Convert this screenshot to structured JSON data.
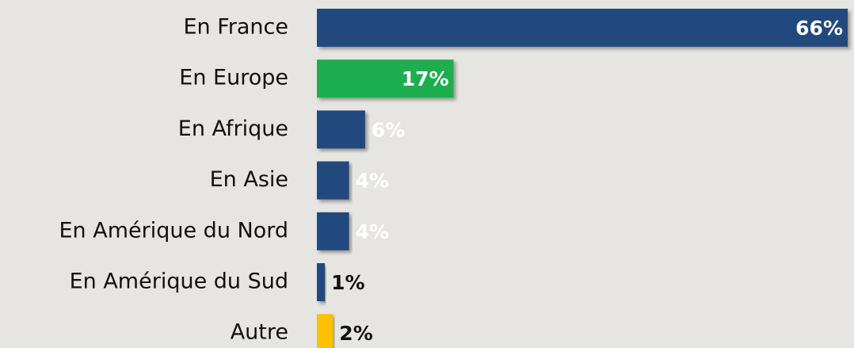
{
  "chart_data": {
    "type": "hbar",
    "categories": [
      "En France",
      "En Europe",
      "En Afrique",
      "En Asie",
      "En Amérique du Nord",
      "En Amérique du Sud",
      "Autre"
    ],
    "values": [
      66,
      17,
      6,
      4,
      4,
      1,
      2
    ],
    "value_labels": [
      "66%",
      "17%",
      "6%",
      "4%",
      "4%",
      "1%",
      "2%"
    ],
    "colors": [
      "#234a7d",
      "#1fae50",
      "#234a7d",
      "#234a7d",
      "#234a7d",
      "#234a7d",
      "#ffc000"
    ],
    "xlim": [
      0,
      66
    ]
  }
}
